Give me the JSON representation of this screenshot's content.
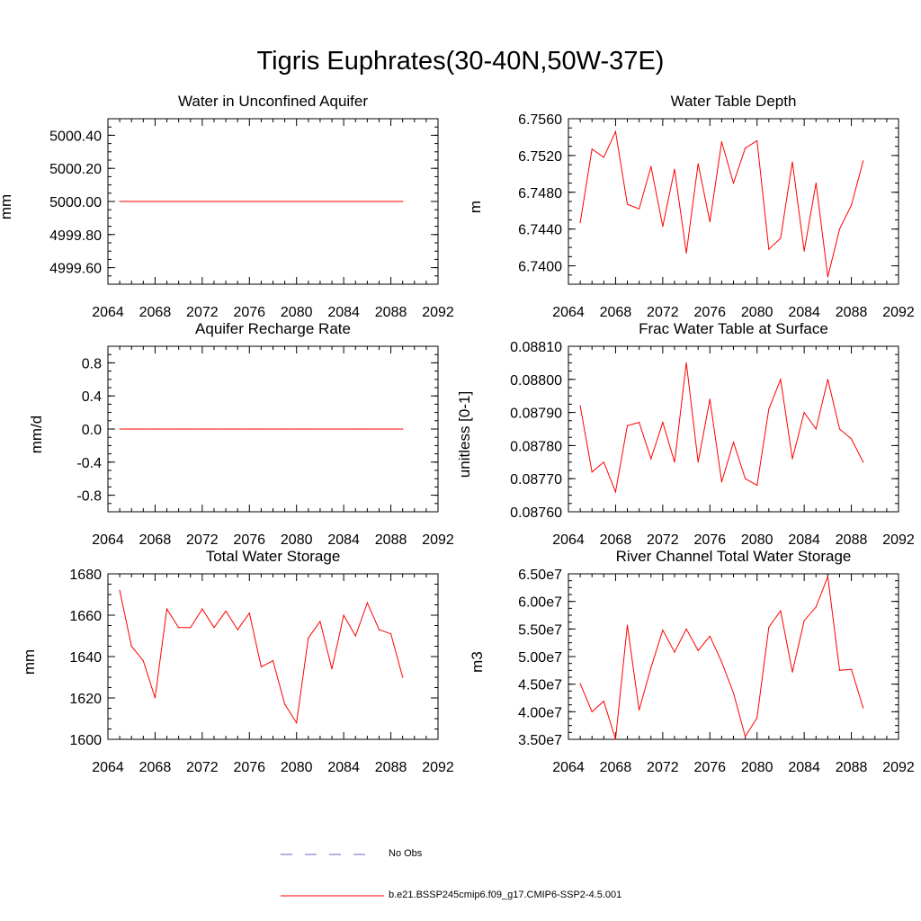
{
  "title": "Tigris Euphrates(30-40N,50W-37E)",
  "legend": {
    "obs_label": "No Obs",
    "obs_color": "#6666cc",
    "model_label": "b.e21.BSSP245cmip6.f09_g17.CMIP6-SSP2-4.5.001",
    "model_color": "#ff0000"
  },
  "chart_data": [
    {
      "type": "line",
      "title": "Water in Unconfined Aquifer",
      "ylabel": "mm",
      "xlim": [
        2064,
        2092
      ],
      "ylim": [
        4999.5,
        5000.5
      ],
      "xticks": [
        2064,
        2068,
        2072,
        2076,
        2080,
        2084,
        2088,
        2092
      ],
      "yticks": [
        4999.6,
        4999.8,
        5000.0,
        5000.2,
        5000.4
      ],
      "ytick_labels": [
        "4999.60",
        "4999.80",
        "5000.00",
        "5000.20",
        "5000.40"
      ],
      "x": [
        2065,
        2066,
        2067,
        2068,
        2069,
        2070,
        2071,
        2072,
        2073,
        2074,
        2075,
        2076,
        2077,
        2078,
        2079,
        2080,
        2081,
        2082,
        2083,
        2084,
        2085,
        2086,
        2087,
        2088,
        2089
      ],
      "series": [
        {
          "values": [
            5000,
            5000,
            5000,
            5000,
            5000,
            5000,
            5000,
            5000,
            5000,
            5000,
            5000,
            5000,
            5000,
            5000,
            5000,
            5000,
            5000,
            5000,
            5000,
            5000,
            5000,
            5000,
            5000,
            5000,
            5000
          ]
        }
      ]
    },
    {
      "type": "line",
      "title": "Water Table Depth",
      "ylabel": "m",
      "xlim": [
        2064,
        2092
      ],
      "ylim": [
        6.738,
        6.756
      ],
      "xticks": [
        2064,
        2068,
        2072,
        2076,
        2080,
        2084,
        2088,
        2092
      ],
      "yticks": [
        6.74,
        6.744,
        6.748,
        6.752,
        6.756
      ],
      "ytick_labels": [
        "6.7400",
        "6.7440",
        "6.7480",
        "6.7520",
        "6.7560"
      ],
      "x": [
        2065,
        2066,
        2067,
        2068,
        2069,
        2070,
        2071,
        2072,
        2073,
        2074,
        2075,
        2076,
        2077,
        2078,
        2079,
        2080,
        2081,
        2082,
        2083,
        2084,
        2085,
        2086,
        2087,
        2088,
        2089
      ],
      "series": [
        {
          "values": [
            6.7447,
            6.7527,
            6.7518,
            6.7546,
            6.7467,
            6.7462,
            6.7508,
            6.7443,
            6.7505,
            6.7414,
            6.7511,
            6.7448,
            6.7535,
            6.749,
            6.7528,
            6.7536,
            6.7418,
            6.743,
            6.7513,
            6.7416,
            6.749,
            6.7388,
            6.744,
            6.7466,
            6.7514
          ]
        }
      ]
    },
    {
      "type": "line",
      "title": "Aquifer Recharge Rate",
      "ylabel": "mm/d",
      "xlim": [
        2064,
        2092
      ],
      "ylim": [
        -1.0,
        1.0
      ],
      "xticks": [
        2064,
        2068,
        2072,
        2076,
        2080,
        2084,
        2088,
        2092
      ],
      "yticks": [
        -0.8,
        -0.4,
        0.0,
        0.4,
        0.8
      ],
      "ytick_labels": [
        "-0.8",
        "-0.4",
        "0.0",
        "0.4",
        "0.8"
      ],
      "x": [
        2065,
        2066,
        2067,
        2068,
        2069,
        2070,
        2071,
        2072,
        2073,
        2074,
        2075,
        2076,
        2077,
        2078,
        2079,
        2080,
        2081,
        2082,
        2083,
        2084,
        2085,
        2086,
        2087,
        2088,
        2089
      ],
      "series": [
        {
          "values": [
            0,
            0,
            0,
            0,
            0,
            0,
            0,
            0,
            0,
            0,
            0,
            0,
            0,
            0,
            0,
            0,
            0,
            0,
            0,
            0,
            0,
            0,
            0,
            0,
            0
          ]
        }
      ]
    },
    {
      "type": "line",
      "title": "Frac Water Table at Surface",
      "ylabel": "unitless [0-1]",
      "xlim": [
        2064,
        2092
      ],
      "ylim": [
        0.0876,
        0.0881
      ],
      "xticks": [
        2064,
        2068,
        2072,
        2076,
        2080,
        2084,
        2088,
        2092
      ],
      "yticks": [
        0.0876,
        0.0877,
        0.0878,
        0.0879,
        0.088,
        0.0881
      ],
      "ytick_labels": [
        "0.08760",
        "0.08770",
        "0.08780",
        "0.08790",
        "0.08800",
        "0.08810"
      ],
      "x": [
        2065,
        2066,
        2067,
        2068,
        2069,
        2070,
        2071,
        2072,
        2073,
        2074,
        2075,
        2076,
        2077,
        2078,
        2079,
        2080,
        2081,
        2082,
        2083,
        2084,
        2085,
        2086,
        2087,
        2088,
        2089
      ],
      "series": [
        {
          "values": [
            0.08792,
            0.08772,
            0.08775,
            0.08766,
            0.08786,
            0.08787,
            0.08776,
            0.08787,
            0.08775,
            0.08805,
            0.08775,
            0.08794,
            0.08769,
            0.08781,
            0.0877,
            0.08768,
            0.08791,
            0.088,
            0.08776,
            0.0879,
            0.08785,
            0.088,
            0.08785,
            0.08782,
            0.08775
          ]
        }
      ]
    },
    {
      "type": "line",
      "title": "Total Water Storage",
      "ylabel": "mm",
      "xlim": [
        2064,
        2092
      ],
      "ylim": [
        1600,
        1680
      ],
      "xticks": [
        2064,
        2068,
        2072,
        2076,
        2080,
        2084,
        2088,
        2092
      ],
      "yticks": [
        1600,
        1620,
        1640,
        1660,
        1680
      ],
      "ytick_labels": [
        "1600",
        "1620",
        "1640",
        "1660",
        "1680"
      ],
      "x": [
        2065,
        2066,
        2067,
        2068,
        2069,
        2070,
        2071,
        2072,
        2073,
        2074,
        2075,
        2076,
        2077,
        2078,
        2079,
        2080,
        2081,
        2082,
        2083,
        2084,
        2085,
        2086,
        2087,
        2088,
        2089
      ],
      "series": [
        {
          "values": [
            1672,
            1645,
            1638,
            1620,
            1663,
            1654,
            1654,
            1663,
            1654,
            1662,
            1653,
            1661,
            1635,
            1638,
            1617,
            1608,
            1649,
            1657,
            1634,
            1660,
            1650,
            1666,
            1653,
            1651,
            1630
          ]
        }
      ]
    },
    {
      "type": "line",
      "title": "River Channel Total Water Storage",
      "ylabel": "m3",
      "xlim": [
        2064,
        2092
      ],
      "ylim": [
        35000000,
        65000000
      ],
      "xticks": [
        2064,
        2068,
        2072,
        2076,
        2080,
        2084,
        2088,
        2092
      ],
      "yticks": [
        35000000,
        40000000,
        45000000,
        50000000,
        55000000,
        60000000,
        65000000
      ],
      "ytick_labels": [
        "3.50e7",
        "4.00e7",
        "4.50e7",
        "5.00e7",
        "5.50e7",
        "6.00e7",
        "6.50e7"
      ],
      "x": [
        2065,
        2066,
        2067,
        2068,
        2069,
        2070,
        2071,
        2072,
        2073,
        2074,
        2075,
        2076,
        2077,
        2078,
        2079,
        2080,
        2081,
        2082,
        2083,
        2084,
        2085,
        2086,
        2087,
        2088,
        2089
      ],
      "series": [
        {
          "values": [
            45100000,
            40000000,
            41900000,
            35000000,
            55700000,
            40300000,
            48000000,
            54800000,
            50800000,
            55000000,
            51100000,
            53700000,
            49000000,
            43400000,
            35500000,
            38900000,
            55300000,
            58300000,
            47200000,
            56500000,
            59000000,
            64500000,
            47500000,
            47700000,
            40700000
          ]
        }
      ]
    }
  ]
}
